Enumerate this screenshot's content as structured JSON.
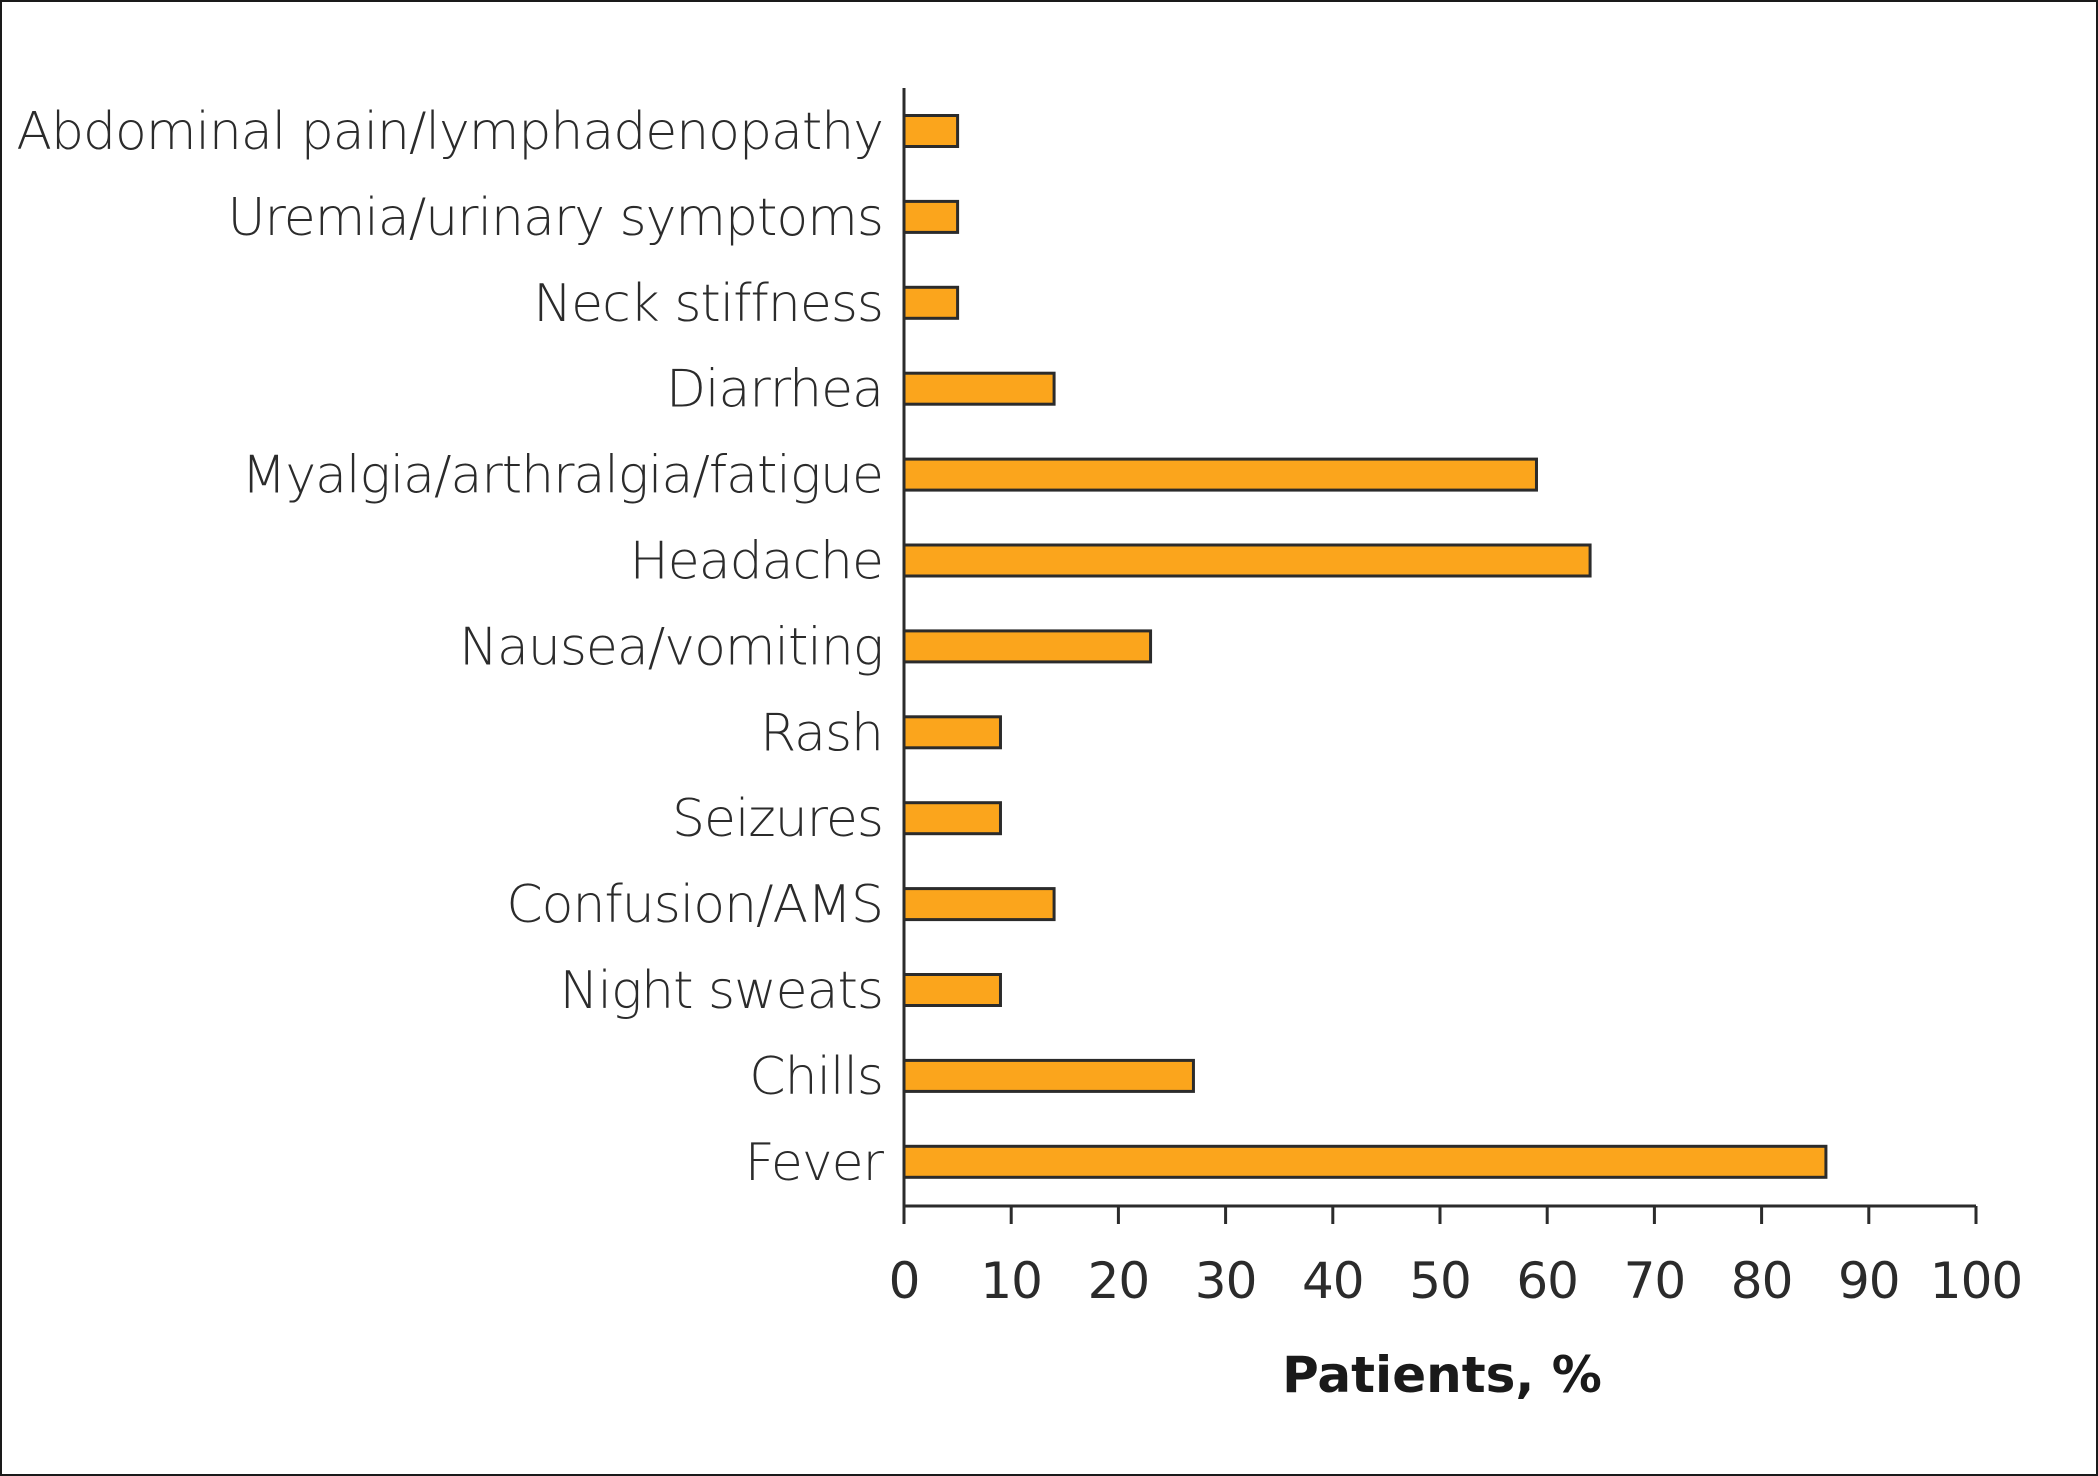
{
  "chart_data": {
    "type": "bar",
    "orientation": "horizontal",
    "categories": [
      "Abdominal pain/lymphadenopathy",
      "Uremia/urinary symptoms",
      "Neck stiffness",
      "Diarrhea",
      "Myalgia/arthralgia/fatigue",
      "Headache",
      "Nausea/vomiting",
      "Rash",
      "Seizures",
      "Confusion/AMS",
      "Night sweats",
      "Chills",
      "Fever"
    ],
    "values": [
      5,
      5,
      5,
      14,
      59,
      64,
      23,
      9,
      9,
      14,
      9,
      27,
      86
    ],
    "xlabel": "Patients, %",
    "ylabel": "",
    "xlim": [
      0,
      100
    ],
    "xticks": [
      "0",
      "10",
      "20",
      "30",
      "40",
      "50",
      "60",
      "70",
      "80",
      "90",
      "100"
    ],
    "grid": false,
    "bar_color": "#FBA51C"
  }
}
